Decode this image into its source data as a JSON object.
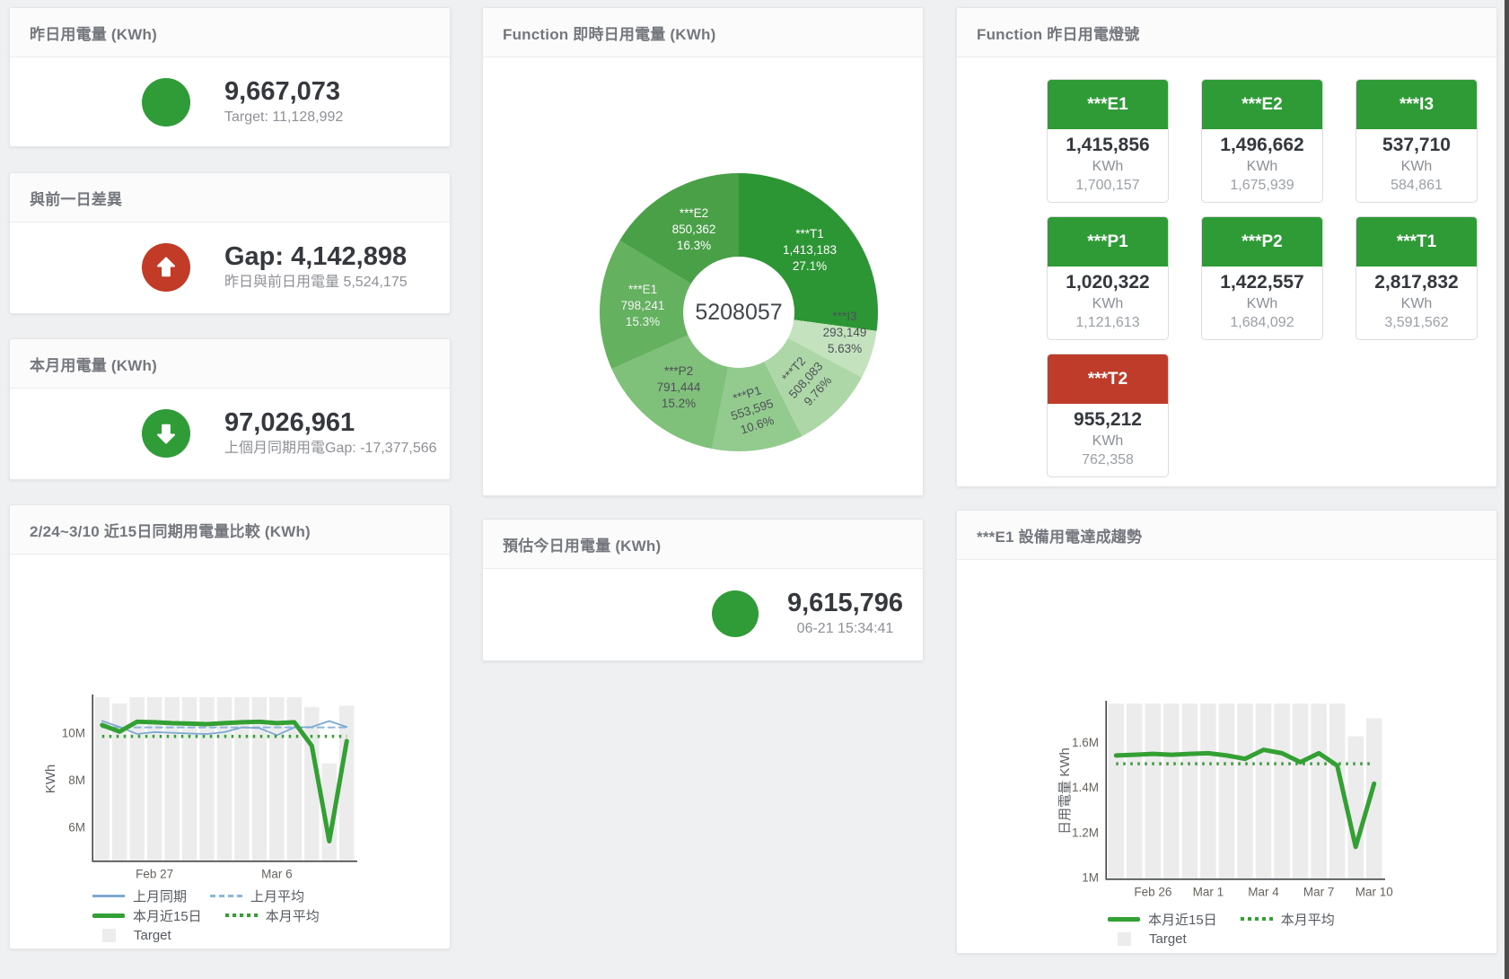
{
  "panels": {
    "yesterday": {
      "title": "昨日用電量 (KWh)",
      "value": "9,667,073",
      "subtitle": "Target: 11,128,992"
    },
    "gap": {
      "title": "與前一日差異",
      "value": "Gap: 4,142,898",
      "subtitle": "昨日與前日用電量 5,524,175"
    },
    "month": {
      "title": "本月用電量 (KWh)",
      "value": "97,026,961",
      "subtitle": "上個月同期用電Gap: -17,377,566"
    },
    "today": {
      "title": "預估今日用電量 (KWh)",
      "value": "9,615,796",
      "subtitle": "06-21 15:34:41"
    },
    "lights": {
      "title": "Function 昨日用電燈號",
      "tiles": [
        {
          "label": "***E1",
          "value": "1,415,856",
          "unit": "KWh",
          "secondary": "1,700,157",
          "color": "#2f9b36"
        },
        {
          "label": "***E2",
          "value": "1,496,662",
          "unit": "KWh",
          "secondary": "1,675,939",
          "color": "#2f9b36"
        },
        {
          "label": "***I3",
          "value": "537,710",
          "unit": "KWh",
          "secondary": "584,861",
          "color": "#2f9b36"
        },
        {
          "label": "***P1",
          "value": "1,020,322",
          "unit": "KWh",
          "secondary": "1,121,613",
          "color": "#2f9b36"
        },
        {
          "label": "***P2",
          "value": "1,422,557",
          "unit": "KWh",
          "secondary": "1,684,092",
          "color": "#2f9b36"
        },
        {
          "label": "***T1",
          "value": "2,817,832",
          "unit": "KWh",
          "secondary": "3,591,562",
          "color": "#2f9b36"
        },
        {
          "label": "***T2",
          "value": "955,212",
          "unit": "KWh",
          "secondary": "762,358",
          "color": "#bf3c2b"
        }
      ]
    }
  },
  "status_colors": {
    "good": "#2f9c38",
    "bad": "#c23b27"
  },
  "chart_data": [
    {
      "type": "pie",
      "title": "Function 即時日用電量 (KWh)",
      "center_label": "5208057",
      "hole": 0.4,
      "segments": [
        {
          "name": "***T1",
          "value": 1413183,
          "display": "1,413,183",
          "pct": "27.1%",
          "pct_num": 27.1,
          "color": "#2d9634",
          "text": "#ffffff",
          "inside": true
        },
        {
          "name": "***I3",
          "value": 293149,
          "display": "293,149",
          "pct": "5.63%",
          "pct_num": 5.63,
          "color": "#c3e2bd",
          "text": "#4d5257",
          "inside": false
        },
        {
          "name": "***T2",
          "value": 508083,
          "display": "508,083",
          "pct": "9.76%",
          "pct_num": 9.76,
          "color": "#aed7a8",
          "text": "#4d5257",
          "inside": true
        },
        {
          "name": "***P1",
          "value": 553595,
          "display": "553,595",
          "pct": "10.6%",
          "pct_num": 10.6,
          "color": "#93ca8d",
          "text": "#4d5257",
          "inside": true
        },
        {
          "name": "***P2",
          "value": 791444,
          "display": "791,444",
          "pct": "15.2%",
          "pct_num": 15.2,
          "color": "#7fc07a",
          "text": "#4d5257",
          "inside": true
        },
        {
          "name": "***E1",
          "value": 798241,
          "display": "798,241",
          "pct": "15.3%",
          "pct_num": 15.3,
          "color": "#64b260",
          "text": "#f2f5f2",
          "inside": true
        },
        {
          "name": "***E2",
          "value": 850362,
          "display": "850,362",
          "pct": "16.3%",
          "pct_num": 16.3,
          "color": "#49a046",
          "text": "#ffffff",
          "inside": true
        }
      ]
    },
    {
      "type": "line",
      "title": "2/24~3/10 近15日同期用電量比較 (KWh)",
      "ylabel": "KWh",
      "n": 15,
      "ylim": [
        4630000,
        11560000
      ],
      "yticks": [
        {
          "value": 6000000,
          "label": "6M"
        },
        {
          "value": 8000000,
          "label": "8M"
        },
        {
          "value": 10000000,
          "label": "10M"
        }
      ],
      "xticks": [
        {
          "index": 3,
          "label": "Feb 27"
        },
        {
          "index": 10,
          "label": "Mar 6"
        }
      ],
      "grid": false,
      "series": [
        {
          "name": "Target",
          "type": "bar",
          "color": "#ececec",
          "values": [
            11700000,
            11300000,
            11700000,
            11700000,
            11700000,
            11700000,
            11700000,
            11700000,
            11700000,
            11700000,
            11700000,
            11700000,
            11150000,
            8750000,
            11200000
          ]
        },
        {
          "name": "上月平均",
          "type": "line",
          "style": "dashed",
          "color": "#8cb6dc",
          "width": 2,
          "const": 10280000
        },
        {
          "name": "上月同期",
          "type": "line",
          "style": "solid",
          "color": "#7da9d2",
          "width": 1.8,
          "values": [
            10550000,
            10300000,
            10000000,
            10080000,
            10050000,
            10020000,
            10000000,
            10080000,
            10280000,
            10250000,
            9950000,
            10280000,
            10300000,
            10550000,
            10300000
          ]
        },
        {
          "name": "本月近15日",
          "type": "line",
          "style": "solid",
          "color": "#33a033",
          "width": 5,
          "values": [
            10380000,
            10100000,
            10520000,
            10500000,
            10460000,
            10440000,
            10420000,
            10460000,
            10500000,
            10520000,
            10460000,
            10500000,
            9500000,
            5450000,
            9700000
          ]
        },
        {
          "name": "本月平均",
          "type": "line",
          "style": "dotted",
          "color": "#33a033",
          "width": 3.5,
          "const": 9900000
        }
      ],
      "legend_rows": [
        [
          {
            "label": "上月同期",
            "swatch": "sw-line-blue"
          },
          {
            "label": "上月平均",
            "swatch": "sw-dash-blue"
          }
        ],
        [
          {
            "label": "本月近15日",
            "swatch": "sw-line-green"
          },
          {
            "label": "本月平均",
            "swatch": "sw-dot-green"
          }
        ],
        [
          {
            "label": "Target",
            "swatch": "sw-square-gray"
          }
        ]
      ],
      "legend_position": "bottom-left"
    },
    {
      "type": "line",
      "title": "***E1 設備用電達成趨勢",
      "ylabel": "日用電量 KWh",
      "n": 15,
      "ylim": [
        1000000,
        1775000
      ],
      "yticks": [
        {
          "value": 1000000,
          "label": "1M"
        },
        {
          "value": 1200000,
          "label": "1.2M"
        },
        {
          "value": 1400000,
          "label": "1.4M"
        },
        {
          "value": 1600000,
          "label": "1.6M"
        }
      ],
      "xticks": [
        {
          "index": 2,
          "label": "Feb 26"
        },
        {
          "index": 5,
          "label": "Mar 1"
        },
        {
          "index": 8,
          "label": "Mar 4"
        },
        {
          "index": 11,
          "label": "Mar 7"
        },
        {
          "index": 14,
          "label": "Mar 10"
        }
      ],
      "grid": false,
      "series": [
        {
          "name": "Target",
          "type": "bar",
          "color": "#ececec",
          "values": [
            1780000,
            1780000,
            1780000,
            1780000,
            1780000,
            1780000,
            1780000,
            1780000,
            1780000,
            1780000,
            1780000,
            1780000,
            1780000,
            1630000,
            1710000
          ]
        },
        {
          "name": "本月近15日",
          "type": "line",
          "style": "solid",
          "color": "#33a033",
          "width": 5,
          "values": [
            1545000,
            1548000,
            1552000,
            1548000,
            1552000,
            1555000,
            1545000,
            1530000,
            1570000,
            1555000,
            1515000,
            1555000,
            1500000,
            1140000,
            1420000
          ]
        },
        {
          "name": "本月平均",
          "type": "line",
          "style": "dotted",
          "color": "#33a033",
          "width": 3.5,
          "const": 1508000
        }
      ],
      "legend_rows": [
        [
          {
            "label": "本月近15日",
            "swatch": "sw-line-green"
          },
          {
            "label": "本月平均",
            "swatch": "sw-dot-green"
          }
        ],
        [
          {
            "label": "Target",
            "swatch": "sw-square-gray"
          }
        ]
      ],
      "legend_position": "bottom-center"
    }
  ]
}
